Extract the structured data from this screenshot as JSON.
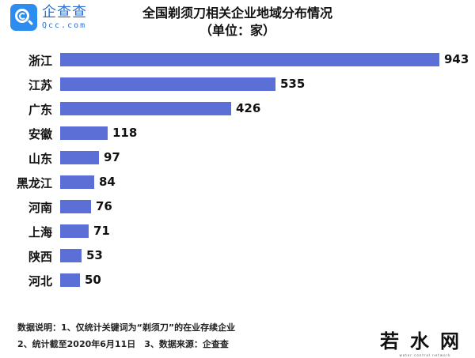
{
  "logo": {
    "name": "企查查",
    "domain": "Qcc.com"
  },
  "title": {
    "line1": "全国剃须刀相关企业地域分布情况",
    "line2": "（单位：家）"
  },
  "chart_data": {
    "type": "bar",
    "orientation": "horizontal",
    "title": "全国剃须刀相关企业地域分布情况（单位：家）",
    "categories": [
      "浙江",
      "江苏",
      "广东",
      "安徽",
      "山东",
      "黑龙江",
      "河南",
      "上海",
      "陕西",
      "河北"
    ],
    "values": [
      943,
      535,
      426,
      118,
      97,
      84,
      76,
      71,
      53,
      50
    ],
    "xlabel": "",
    "ylabel": "",
    "grid": false,
    "legend": null,
    "bar_color": "#5b6fd6",
    "data_labels": true
  },
  "notes": {
    "line1": "数据说明：1、仅统计关键词为“剃须刀”的在业存续企业",
    "line2": "2、统计截至2020年6月11日　3、数据来源：企查查"
  },
  "watermark": {
    "cn": "若水网",
    "en": "water   control   network"
  }
}
